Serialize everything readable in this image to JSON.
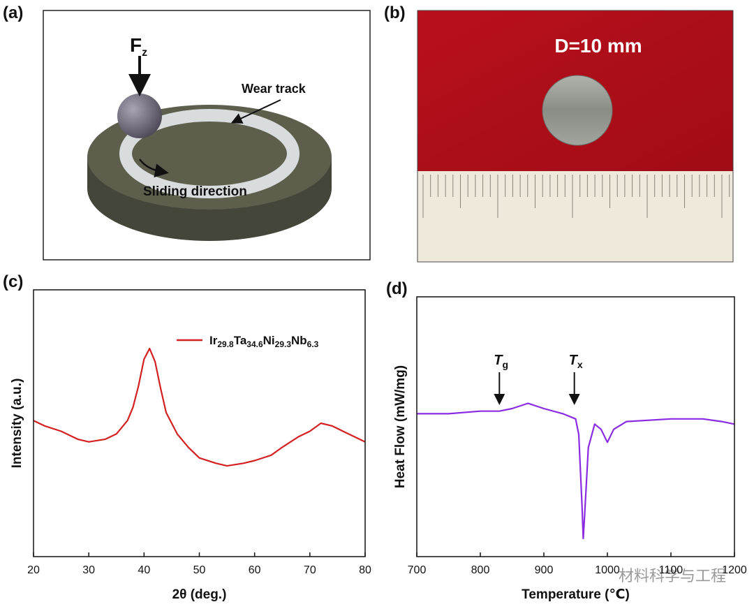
{
  "panels": [
    {
      "label": "(a)",
      "force": "F",
      "force_sub": "z",
      "wear_track": "Wear track",
      "sliding": "Sliding direction"
    },
    {
      "label": "(b)",
      "diameter": "D=10 mm"
    }
  ],
  "chart_data": [
    {
      "type": "line",
      "panel_label": "(c)",
      "xlabel": "2θ (deg.)",
      "ylabel": "Intensity (a.u.)",
      "x": [
        20,
        22,
        25,
        28,
        30,
        33,
        35,
        37,
        38,
        39,
        40,
        41,
        42,
        43,
        44,
        46,
        48,
        50,
        53,
        55,
        58,
        60,
        63,
        65,
        68,
        70,
        72,
        74,
        76,
        78,
        80
      ],
      "series": [
        {
          "name": "Ir29.8Ta34.6Ni29.3Nb6.3",
          "color": "#d42020",
          "values": [
            51,
            49,
            47,
            44,
            43,
            44,
            46,
            51,
            56,
            64,
            74,
            78,
            73,
            63,
            54,
            46,
            41,
            37,
            35,
            34,
            35,
            36,
            38,
            41,
            45,
            47,
            50,
            49,
            47,
            45,
            43
          ]
        }
      ],
      "xlim": [
        20,
        80
      ],
      "xticks": [
        20,
        30,
        40,
        50,
        60,
        70,
        80
      ],
      "ylim": [
        0,
        100
      ],
      "legend": "upper right"
    },
    {
      "type": "line",
      "panel_label": "(d)",
      "xlabel": "Temperature (℃)",
      "ylabel": "Heat Flow (mW/mg)",
      "x": [
        700,
        750,
        800,
        830,
        850,
        875,
        900,
        930,
        950,
        955,
        960,
        962,
        964,
        970,
        980,
        990,
        1000,
        1010,
        1030,
        1100,
        1150,
        1180,
        1200
      ],
      "series": [
        {
          "color": "#8a2be2",
          "values": [
            55,
            55,
            56,
            56,
            57,
            59,
            57,
            55,
            53,
            47,
            20,
            7,
            15,
            42,
            51,
            49,
            44,
            49,
            52,
            53,
            53,
            52,
            51
          ]
        }
      ],
      "xlim": [
        700,
        1200
      ],
      "xticks": [
        700,
        800,
        900,
        1000,
        1100,
        1200
      ],
      "ylim": [
        0,
        100
      ],
      "annotations": [
        {
          "text": "T",
          "sub": "g",
          "x": 830
        },
        {
          "text": "T",
          "sub": "x",
          "x": 948
        }
      ]
    }
  ],
  "watermark": "材料科学与工程"
}
